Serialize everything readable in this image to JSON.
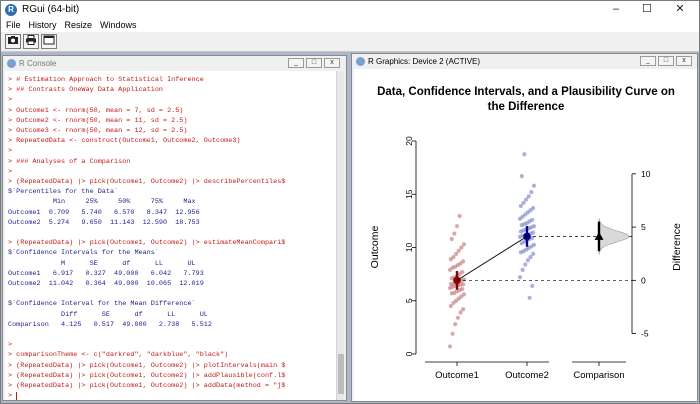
{
  "app": {
    "title": "RGui (64-bit)"
  },
  "window_controls": {
    "minimize": "–",
    "maximize": "☐",
    "close": "✕"
  },
  "menu": [
    "File",
    "History",
    "Resize",
    "Windows"
  ],
  "toolbar": {
    "icons": [
      "camera-icon",
      "printer-icon",
      "window-icon"
    ]
  },
  "console": {
    "title": "R Console",
    "lines": [
      {
        "text": "> # Estimation Approach to Statistical Inference",
        "color": "red"
      },
      {
        "text": "> ## Contrasts OneWay Data Application",
        "color": "red"
      },
      {
        "text": ">",
        "color": "red"
      },
      {
        "text": "> Outcome1 <- rnorm(50, mean = 7, sd = 2.5)",
        "color": "red"
      },
      {
        "text": "> Outcome2 <- rnorm(50, mean = 11, sd = 2.5)",
        "color": "red"
      },
      {
        "text": "> Outcome3 <- rnorm(50, mean = 12, sd = 2.5)",
        "color": "red"
      },
      {
        "text": "> RepeatedData <- construct(Outcome1, Outcome2, Outcome3)",
        "color": "red"
      },
      {
        "text": ">",
        "color": "red"
      },
      {
        "text": "> ### Analyses of a Comparison",
        "color": "red"
      },
      {
        "text": ">",
        "color": "red"
      },
      {
        "text": "> (RepeatedData) |> pick(Outcome1, Outcome2) |> describePercentiles$",
        "color": "red"
      },
      {
        "text": "$`Percentiles for the Data`",
        "color": "blue"
      },
      {
        "text": "           Min     25%     50%     75%     Max",
        "color": "blue"
      },
      {
        "text": "Outcome1  0.709   5.740   6.570   8.347  12.956",
        "color": "blue"
      },
      {
        "text": "Outcome2  5.274   9.650  11.143  12.590  18.753",
        "color": "blue"
      },
      {
        "text": "",
        "color": "blue"
      },
      {
        "text": "> (RepeatedData) |> pick(Outcome1, Outcome2) |> estimateMeanCompari$",
        "color": "red"
      },
      {
        "text": "$`Confidence Intervals for the Means`",
        "color": "blue"
      },
      {
        "text": "             M      SE      df      LL      UL",
        "color": "blue"
      },
      {
        "text": "Outcome1   6.917   0.327  49.000   6.042   7.793",
        "color": "blue"
      },
      {
        "text": "Outcome2  11.042   0.364  49.000  10.065  12.019",
        "color": "blue"
      },
      {
        "text": "",
        "color": "blue"
      },
      {
        "text": "$`Confidence Interval for the Mean Difference`",
        "color": "blue"
      },
      {
        "text": "             Diff      SE      df      LL      UL",
        "color": "blue"
      },
      {
        "text": "Comparison   4.125   0.517  49.000   2.738   5.512",
        "color": "blue"
      },
      {
        "text": "",
        "color": "blue"
      },
      {
        "text": ">",
        "color": "red"
      },
      {
        "text": "> comparisonTheme <- c(\"darkred\", \"darkblue\", \"black\")",
        "color": "red"
      },
      {
        "text": "> (RepeatedData) |> pick(Outcome1, Outcome2) |> plotIntervals(main $",
        "color": "red"
      },
      {
        "text": "> (RepeatedData) |> pick(Outcome1, Outcome2) |> addPlausible(conf.l$",
        "color": "red"
      },
      {
        "text": "> (RepeatedData) |> pick(Outcome1, Outcome2) |> addData(method = \"j$",
        "color": "red"
      },
      {
        "text": ">",
        "color": "red",
        "cursor": true
      }
    ]
  },
  "graphics": {
    "title": "R Graphics: Device 2 (ACTIVE)"
  },
  "chart_data": {
    "type": "scatter",
    "title": "Data, Confidence Intervals, and a Plausibility Curve on the Difference",
    "ylabel": "Outcome",
    "ylabel_right": "Difference",
    "categories": [
      "Outcome1",
      "Outcome2",
      "Comparison"
    ],
    "ylim": [
      0,
      20
    ],
    "yticks": [
      "0",
      "5",
      "10",
      "15",
      "20"
    ],
    "right_ylim": [
      -6.917,
      13.083
    ],
    "right_yticks": [
      "-5",
      "0",
      "5",
      "10"
    ],
    "colors": {
      "outcome1": "#8b0000",
      "outcome2": "#00008b",
      "comparison": "#000000",
      "points1": "#c47a7a",
      "points2": "#7f86c8"
    },
    "means": [
      {
        "name": "Outcome1",
        "M": 6.917,
        "LL": 6.042,
        "UL": 7.793
      },
      {
        "name": "Outcome2",
        "M": 11.042,
        "LL": 10.065,
        "UL": 12.019
      }
    ],
    "difference": {
      "name": "Comparison",
      "Diff": 4.125,
      "LL": 2.738,
      "UL": 5.512,
      "SE": 0.517
    },
    "percentiles": [
      {
        "name": "Outcome1",
        "min": 0.709,
        "q25": 5.74,
        "median": 6.57,
        "q75": 8.347,
        "max": 12.956
      },
      {
        "name": "Outcome2",
        "min": 5.274,
        "q25": 9.65,
        "median": 11.143,
        "q75": 12.59,
        "max": 18.753
      }
    ],
    "series": [
      {
        "values": [
          0.709,
          1.9,
          2.8,
          3.4,
          3.9,
          4.2,
          4.5,
          4.8,
          5.0,
          5.2,
          5.4,
          5.6,
          5.7,
          5.74,
          5.9,
          6.0,
          6.1,
          6.2,
          6.3,
          6.4,
          6.45,
          6.5,
          6.55,
          6.57,
          6.6,
          6.7,
          6.8,
          6.9,
          7.0,
          7.1,
          7.2,
          7.3,
          7.5,
          7.7,
          7.9,
          8.1,
          8.2,
          8.347,
          8.5,
          8.7,
          8.9,
          9.1,
          9.4,
          9.7,
          10.0,
          10.3,
          10.8,
          11.3,
          12.0,
          12.956
        ]
      },
      {
        "values": [
          5.274,
          6.4,
          7.2,
          7.9,
          8.4,
          8.8,
          9.1,
          9.4,
          9.55,
          9.65,
          9.8,
          9.95,
          10.1,
          10.25,
          10.4,
          10.55,
          10.7,
          10.8,
          10.9,
          11.0,
          11.1,
          11.143,
          11.2,
          11.3,
          11.4,
          11.5,
          11.6,
          11.7,
          11.8,
          11.9,
          12.0,
          12.1,
          12.2,
          12.3,
          12.45,
          12.59,
          12.7,
          12.9,
          13.1,
          13.3,
          13.5,
          13.7,
          13.9,
          14.2,
          14.5,
          14.8,
          15.2,
          15.8,
          16.7,
          18.753
        ]
      }
    ]
  }
}
